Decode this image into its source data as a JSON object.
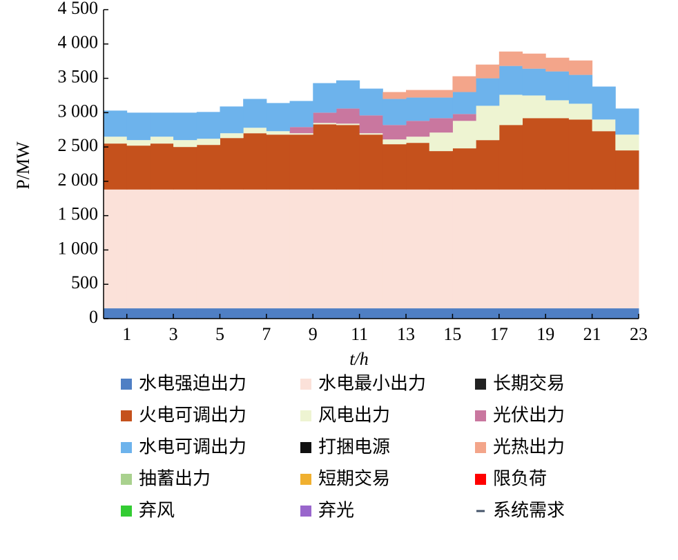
{
  "chart_data": {
    "type": "stacked-step",
    "xlabel": "t/h",
    "ylabel": "P/MW",
    "xlim": [
      0,
      23
    ],
    "xticks": [
      1,
      3,
      5,
      7,
      9,
      11,
      13,
      15,
      17,
      19,
      21,
      23
    ],
    "ylim": [
      0,
      4500
    ],
    "yticks": [
      0,
      500,
      {
        "value": 1000,
        "label": "1 000"
      },
      {
        "value": 1500,
        "label": "1 500"
      },
      {
        "value": 2000,
        "label": "2 000"
      },
      {
        "value": 2500,
        "label": "2 500"
      },
      {
        "value": 3000,
        "label": "3 000"
      },
      {
        "value": 3500,
        "label": "3 500"
      },
      {
        "value": 4000,
        "label": "4 000"
      },
      {
        "value": 4500,
        "label": "4 500"
      }
    ],
    "x": [
      0,
      1,
      2,
      3,
      4,
      5,
      6,
      7,
      8,
      9,
      10,
      11,
      12,
      13,
      14,
      15,
      16,
      17,
      18,
      19,
      20,
      21,
      22
    ],
    "series": [
      {
        "name": "水电强迫出力",
        "color": "#4f7fc4",
        "values": [
          150,
          150,
          150,
          150,
          150,
          150,
          150,
          150,
          150,
          150,
          150,
          150,
          150,
          150,
          150,
          150,
          150,
          150,
          150,
          150,
          150,
          150,
          150
        ]
      },
      {
        "name": "水电最小出力",
        "color": "#fbe1d9",
        "values": [
          1730,
          1730,
          1730,
          1730,
          1730,
          1730,
          1730,
          1730,
          1730,
          1730,
          1730,
          1730,
          1730,
          1730,
          1730,
          1730,
          1730,
          1730,
          1730,
          1730,
          1730,
          1730,
          1730
        ]
      },
      {
        "name": "长期交易",
        "color": "#222222",
        "values": [
          0,
          0,
          0,
          0,
          0,
          0,
          0,
          0,
          0,
          0,
          0,
          0,
          0,
          0,
          0,
          0,
          0,
          0,
          0,
          0,
          0,
          0,
          0
        ]
      },
      {
        "name": "火电可调出力",
        "color": "#c5511c",
        "values": [
          670,
          640,
          670,
          620,
          650,
          750,
          820,
          800,
          800,
          950,
          940,
          800,
          660,
          680,
          560,
          600,
          720,
          940,
          1040,
          1040,
          1020,
          850,
          570
        ]
      },
      {
        "name": "风电出力",
        "color": "#eef4d2",
        "values": [
          100,
          80,
          100,
          100,
          90,
          70,
          80,
          50,
          20,
          20,
          20,
          20,
          70,
          90,
          270,
          400,
          500,
          440,
          330,
          260,
          230,
          170,
          230
        ]
      },
      {
        "name": "光伏出力",
        "color": "#c9779f",
        "values": [
          0,
          0,
          0,
          0,
          0,
          0,
          0,
          0,
          90,
          150,
          220,
          260,
          210,
          230,
          210,
          100,
          0,
          0,
          0,
          0,
          0,
          0,
          0
        ]
      },
      {
        "name": "水电可调出力",
        "color": "#6db3ec",
        "values": [
          380,
          400,
          350,
          400,
          390,
          390,
          420,
          410,
          380,
          430,
          410,
          390,
          380,
          340,
          300,
          320,
          400,
          420,
          390,
          420,
          420,
          480,
          380
        ]
      },
      {
        "name": "打捆电源",
        "color": "#111111",
        "values": [
          0,
          0,
          0,
          0,
          0,
          0,
          0,
          0,
          0,
          0,
          0,
          0,
          0,
          0,
          0,
          0,
          0,
          0,
          0,
          0,
          0,
          0,
          0
        ]
      },
      {
        "name": "光热出力",
        "color": "#f3a58a",
        "values": [
          0,
          0,
          0,
          0,
          0,
          0,
          0,
          0,
          0,
          0,
          0,
          0,
          100,
          110,
          110,
          230,
          200,
          210,
          220,
          200,
          210,
          0,
          0
        ]
      },
      {
        "name": "抽蓄出力",
        "color": "#a9d18e",
        "values": [
          0,
          0,
          0,
          0,
          0,
          0,
          0,
          0,
          0,
          0,
          0,
          0,
          0,
          0,
          0,
          0,
          0,
          0,
          0,
          0,
          0,
          0,
          0
        ]
      },
      {
        "name": "短期交易",
        "color": "#f0b030",
        "values": [
          0,
          0,
          0,
          0,
          0,
          0,
          0,
          0,
          0,
          0,
          0,
          0,
          0,
          0,
          0,
          0,
          0,
          0,
          0,
          0,
          0,
          0,
          0
        ]
      },
      {
        "name": "限负荷",
        "color": "#ff0000",
        "values": [
          0,
          0,
          0,
          0,
          0,
          0,
          0,
          0,
          0,
          0,
          0,
          0,
          0,
          0,
          0,
          0,
          0,
          0,
          0,
          0,
          0,
          0,
          0
        ]
      },
      {
        "name": "弃风",
        "color": "#33cc33",
        "values": [
          0,
          0,
          0,
          0,
          0,
          0,
          0,
          0,
          0,
          0,
          0,
          0,
          0,
          0,
          0,
          0,
          0,
          0,
          0,
          0,
          0,
          0,
          0
        ]
      },
      {
        "name": "弃光",
        "color": "#9966cc",
        "values": [
          0,
          0,
          0,
          0,
          0,
          0,
          0,
          0,
          0,
          0,
          0,
          0,
          0,
          0,
          0,
          0,
          0,
          0,
          0,
          0,
          0,
          0,
          0
        ]
      },
      {
        "name": "系统需求",
        "color": "#44546a",
        "type": "line",
        "values": [
          null,
          null,
          null,
          null,
          null,
          null,
          null,
          null,
          null,
          null,
          null,
          null,
          null,
          null,
          null,
          null,
          null,
          null,
          null,
          null,
          null,
          null,
          null
        ]
      }
    ]
  }
}
